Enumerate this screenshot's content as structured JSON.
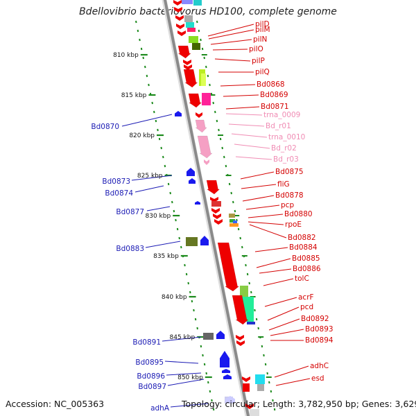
{
  "title": "Bdellovibrio bacteriovorus HD100, complete genome",
  "footer": {
    "accession": "Accession: NC_005363",
    "summary": "Topology: circular; Length: 3,782,950 bp; Genes: 3,629"
  },
  "colors": {
    "forward_label": "#d40000",
    "reverse_label": "#1a1ab4",
    "rna_label": "#f08cb4",
    "backbone": "#8a8a8a",
    "tick": "#1c8a1c"
  },
  "kbp_ticks": [
    "810 kbp",
    "815 kbp",
    "820 kbp",
    "825 kbp",
    "830 kbp",
    "835 kbp",
    "840 kbp",
    "845 kbp",
    "850 kbp"
  ],
  "forward_labels": [
    {
      "text": "pilD",
      "kind": "cds"
    },
    {
      "text": "pilM",
      "kind": "cds"
    },
    {
      "text": "pilN",
      "kind": "cds"
    },
    {
      "text": "pilO",
      "kind": "cds"
    },
    {
      "text": "pilP",
      "kind": "cds"
    },
    {
      "text": "pilQ",
      "kind": "cds"
    },
    {
      "text": "Bd0868",
      "kind": "cds"
    },
    {
      "text": "Bd0869",
      "kind": "cds"
    },
    {
      "text": "Bd0871",
      "kind": "cds"
    },
    {
      "text": "trna_0009",
      "kind": "rna"
    },
    {
      "text": "Bd_r01",
      "kind": "rna"
    },
    {
      "text": "trna_0010",
      "kind": "rna"
    },
    {
      "text": "Bd_r02",
      "kind": "rna"
    },
    {
      "text": "Bd_r03",
      "kind": "rna"
    },
    {
      "text": "Bd0875",
      "kind": "cds"
    },
    {
      "text": "fliG",
      "kind": "cds"
    },
    {
      "text": "Bd0878",
      "kind": "cds"
    },
    {
      "text": "pcp",
      "kind": "cds"
    },
    {
      "text": "Bd0880",
      "kind": "cds"
    },
    {
      "text": "rpoE",
      "kind": "cds"
    },
    {
      "text": "Bd0882",
      "kind": "cds"
    },
    {
      "text": "Bd0884",
      "kind": "cds"
    },
    {
      "text": "Bd0885",
      "kind": "cds"
    },
    {
      "text": "Bd0886",
      "kind": "cds"
    },
    {
      "text": "tolC",
      "kind": "cds"
    },
    {
      "text": "acrF",
      "kind": "cds"
    },
    {
      "text": "pcd",
      "kind": "cds"
    },
    {
      "text": "Bd0892",
      "kind": "cds"
    },
    {
      "text": "Bd0893",
      "kind": "cds"
    },
    {
      "text": "Bd0894",
      "kind": "cds"
    },
    {
      "text": "adhC",
      "kind": "cds"
    },
    {
      "text": "esd",
      "kind": "cds"
    }
  ],
  "reverse_labels": [
    {
      "text": "Bd0870"
    },
    {
      "text": "Bd0873"
    },
    {
      "text": "Bd0874"
    },
    {
      "text": "Bd0877"
    },
    {
      "text": "Bd0883"
    },
    {
      "text": "Bd0891"
    },
    {
      "text": "Bd0895"
    },
    {
      "text": "Bd0896"
    },
    {
      "text": "Bd0897"
    },
    {
      "text": "adhA"
    }
  ]
}
